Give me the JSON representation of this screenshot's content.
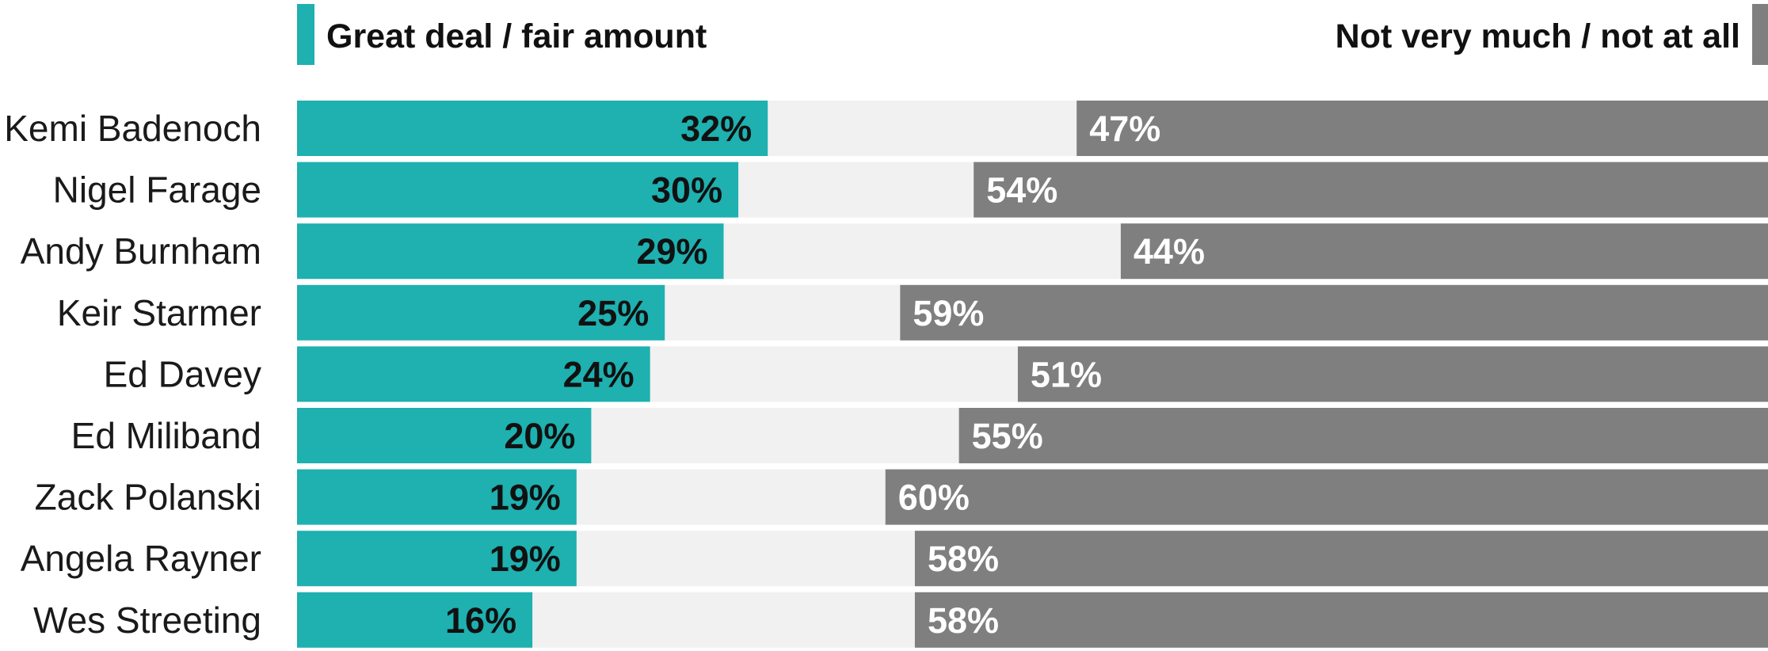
{
  "chart_data": {
    "type": "bar",
    "legend": {
      "positive_label": "Great deal / fair amount",
      "negative_label": "Not very much / not at all",
      "placement": "top"
    },
    "colors": {
      "positive": "#1fb0b0",
      "neutral": "#f1f1f1",
      "negative": "#7f7f7f"
    },
    "xlim": [
      0,
      100
    ],
    "grid": false,
    "categories": [
      "Kemi Badenoch",
      "Nigel Farage",
      "Andy Burnham",
      "Keir Starmer",
      "Ed Davey",
      "Ed Miliband",
      "Zack Polanski",
      "Angela Rayner",
      "Wes Streeting"
    ],
    "series": [
      {
        "name": "Great deal / fair amount",
        "values": [
          32,
          30,
          29,
          25,
          24,
          20,
          19,
          19,
          16
        ],
        "labels": [
          "32%",
          "30%",
          "29%",
          "25%",
          "24%",
          "20%",
          "19%",
          "19%",
          "16%"
        ]
      },
      {
        "name": "Not very much / not at all",
        "values": [
          47,
          54,
          44,
          59,
          51,
          55,
          60,
          58,
          58
        ],
        "labels": [
          "47%",
          "54%",
          "44%",
          "59%",
          "51%",
          "55%",
          "60%",
          "58%",
          "58%"
        ]
      }
    ]
  }
}
